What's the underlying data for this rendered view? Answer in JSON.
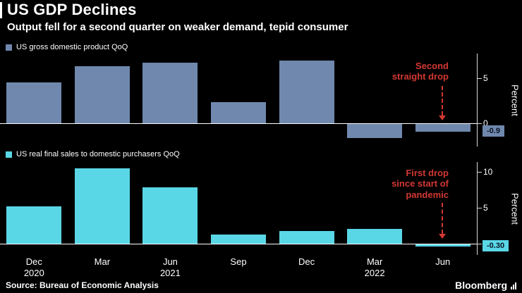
{
  "header": {
    "title": "US GDP Declines",
    "subtitle": "Output fell for a second quarter on weaker demand, tepid consumer"
  },
  "colors": {
    "background": "#000000",
    "gdp_bar": "#7088ad",
    "sales_bar": "#5ad7e6",
    "annotation_red": "#d23832",
    "axis": "#d9d9d9",
    "zero_line": "#ffffff",
    "badge_text": "#0a1322"
  },
  "x_axis": {
    "months": [
      "Dec",
      "Mar",
      "Jun",
      "Sep",
      "Dec",
      "Mar",
      "Jun"
    ],
    "years": [
      {
        "label": "2020",
        "slot": 0
      },
      {
        "label": "2021",
        "slot": 2
      },
      {
        "label": "2022",
        "slot": 5
      }
    ]
  },
  "chart_data": [
    {
      "type": "bar",
      "legend": "US gross domestic product QoQ",
      "categories": [
        "Dec 2020",
        "Mar 2021",
        "Jun 2021",
        "Sep 2021",
        "Dec 2021",
        "Mar 2022",
        "Jun 2022"
      ],
      "values": [
        4.5,
        6.3,
        6.7,
        2.3,
        6.9,
        -1.6,
        -0.9
      ],
      "ylabel": "Percent",
      "yticks": [
        0,
        5
      ],
      "ylim": [
        -2.6,
        7.7
      ],
      "grid": false,
      "legend_position": "top-left",
      "last_value_badge": "-0.9",
      "annotation": "Second\nstraight drop",
      "color_key": "gdp_bar"
    },
    {
      "type": "bar",
      "legend": "US real final sales to domestic purchasers QoQ",
      "categories": [
        "Dec 2020",
        "Mar 2021",
        "Jun 2021",
        "Sep 2021",
        "Dec 2021",
        "Mar 2022",
        "Jun 2022"
      ],
      "values": [
        5.2,
        10.5,
        7.9,
        1.3,
        1.7,
        2.0,
        -0.3
      ],
      "ylabel": "Percent",
      "yticks": [
        0,
        5,
        10
      ],
      "ylim": [
        -1.6,
        11.4
      ],
      "grid": false,
      "legend_position": "top-left",
      "last_value_badge": "-0.30",
      "annotation": "First drop\nsince start of\npandemic",
      "color_key": "sales_bar"
    }
  ],
  "footer": {
    "source": "Source: Bureau of Economic Analysis",
    "brand": "Bloomberg"
  }
}
